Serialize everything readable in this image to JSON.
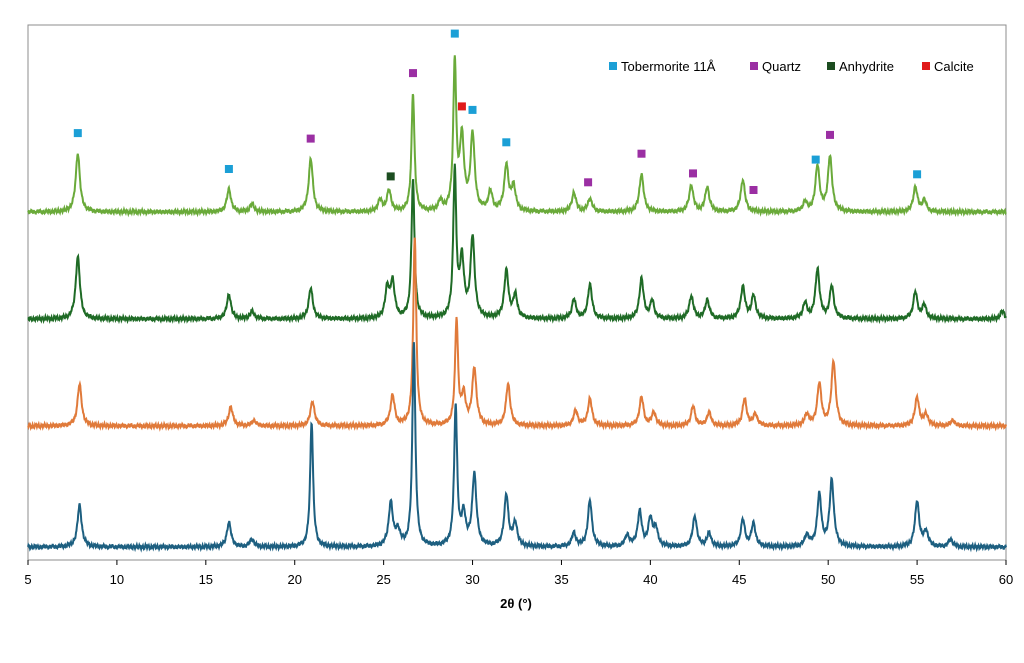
{
  "chart_data": {
    "type": "line",
    "title": "",
    "xlabel": "2θ (°)",
    "ylabel": "",
    "xlim": [
      5,
      60
    ],
    "x_ticks": [
      "5",
      "10",
      "15",
      "20",
      "25",
      "30",
      "35",
      "40",
      "45",
      "50",
      "55",
      "60"
    ],
    "grid": false,
    "legend": {
      "position": "top-right",
      "entries": [
        {
          "label": "Tobermorite 11Å",
          "color": "#1b9fd6"
        },
        {
          "label": "Quartz",
          "color": "#9b2fa3"
        },
        {
          "label": "Anhydrite",
          "color": "#1c4d20"
        },
        {
          "label": "Calcite",
          "color": "#e01a1a"
        }
      ]
    },
    "series": [
      {
        "color": "#6aaa3a",
        "baseline": 0,
        "peaks": [
          [
            7.8,
            0.31
          ],
          [
            16.3,
            0.12
          ],
          [
            17.6,
            0.04
          ],
          [
            20.9,
            0.28
          ],
          [
            24.8,
            0.06
          ],
          [
            25.3,
            0.11
          ],
          [
            26.65,
            0.62
          ],
          [
            28.2,
            0.05
          ],
          [
            29.0,
            0.78
          ],
          [
            29.4,
            0.38
          ],
          [
            30.0,
            0.4
          ],
          [
            31.0,
            0.1
          ],
          [
            31.9,
            0.24
          ],
          [
            32.3,
            0.13
          ],
          [
            35.7,
            0.1
          ],
          [
            36.6,
            0.07
          ],
          [
            39.5,
            0.2
          ],
          [
            42.3,
            0.14
          ],
          [
            43.2,
            0.13
          ],
          [
            45.2,
            0.17
          ],
          [
            48.7,
            0.05
          ],
          [
            49.4,
            0.24
          ],
          [
            50.1,
            0.29
          ],
          [
            54.9,
            0.13
          ],
          [
            55.4,
            0.06
          ]
        ]
      },
      {
        "color": "#1f6b26",
        "baseline": 0,
        "peaks": [
          [
            7.8,
            0.33
          ],
          [
            16.3,
            0.13
          ],
          [
            17.6,
            0.04
          ],
          [
            20.9,
            0.16
          ],
          [
            25.2,
            0.15
          ],
          [
            25.5,
            0.19
          ],
          [
            26.65,
            0.73
          ],
          [
            29.0,
            0.77
          ],
          [
            29.4,
            0.3
          ],
          [
            30.0,
            0.42
          ],
          [
            31.9,
            0.25
          ],
          [
            32.4,
            0.12
          ],
          [
            35.7,
            0.1
          ],
          [
            36.6,
            0.18
          ],
          [
            39.5,
            0.21
          ],
          [
            40.1,
            0.09
          ],
          [
            42.3,
            0.12
          ],
          [
            43.2,
            0.1
          ],
          [
            45.2,
            0.17
          ],
          [
            45.8,
            0.12
          ],
          [
            48.7,
            0.08
          ],
          [
            49.4,
            0.26
          ],
          [
            50.2,
            0.17
          ],
          [
            54.9,
            0.14
          ],
          [
            55.4,
            0.07
          ],
          [
            59.8,
            0.04
          ]
        ]
      },
      {
        "color": "#e07a3a",
        "baseline": 0,
        "peaks": [
          [
            7.9,
            0.22
          ],
          [
            16.4,
            0.1
          ],
          [
            17.7,
            0.03
          ],
          [
            21.0,
            0.13
          ],
          [
            25.5,
            0.16
          ],
          [
            26.75,
            1.0
          ],
          [
            29.1,
            0.55
          ],
          [
            29.5,
            0.15
          ],
          [
            30.1,
            0.3
          ],
          [
            32.0,
            0.22
          ],
          [
            35.8,
            0.08
          ],
          [
            36.6,
            0.14
          ],
          [
            39.5,
            0.15
          ],
          [
            40.2,
            0.07
          ],
          [
            42.4,
            0.1
          ],
          [
            43.3,
            0.07
          ],
          [
            45.3,
            0.14
          ],
          [
            45.9,
            0.06
          ],
          [
            48.8,
            0.06
          ],
          [
            49.5,
            0.22
          ],
          [
            50.3,
            0.34
          ],
          [
            55.0,
            0.15
          ],
          [
            55.5,
            0.06
          ],
          [
            57.0,
            0.03
          ]
        ]
      },
      {
        "color": "#1d5f80",
        "baseline": 0,
        "peaks": [
          [
            7.9,
            0.22
          ],
          [
            16.3,
            0.13
          ],
          [
            17.6,
            0.04
          ],
          [
            20.95,
            0.66
          ],
          [
            25.4,
            0.23
          ],
          [
            25.8,
            0.08
          ],
          [
            26.7,
            1.08
          ],
          [
            29.05,
            0.74
          ],
          [
            29.5,
            0.16
          ],
          [
            30.1,
            0.38
          ],
          [
            31.9,
            0.27
          ],
          [
            32.4,
            0.12
          ],
          [
            35.7,
            0.07
          ],
          [
            36.6,
            0.24
          ],
          [
            38.7,
            0.06
          ],
          [
            39.4,
            0.18
          ],
          [
            40.0,
            0.14
          ],
          [
            40.3,
            0.09
          ],
          [
            42.5,
            0.16
          ],
          [
            43.3,
            0.07
          ],
          [
            45.2,
            0.14
          ],
          [
            45.8,
            0.12
          ],
          [
            48.8,
            0.06
          ],
          [
            49.5,
            0.27
          ],
          [
            50.2,
            0.35
          ],
          [
            55.0,
            0.24
          ],
          [
            55.5,
            0.08
          ],
          [
            56.9,
            0.04
          ]
        ]
      }
    ],
    "annotations": [
      {
        "x": 7.8,
        "phase": "Tobermorite 11Å"
      },
      {
        "x": 16.3,
        "phase": "Tobermorite 11Å"
      },
      {
        "x": 20.9,
        "phase": "Quartz"
      },
      {
        "x": 25.4,
        "phase": "Anhydrite"
      },
      {
        "x": 26.65,
        "phase": "Quartz"
      },
      {
        "x": 29.0,
        "phase": "Tobermorite 11Å"
      },
      {
        "x": 29.4,
        "phase": "Calcite"
      },
      {
        "x": 30.0,
        "phase": "Tobermorite 11Å"
      },
      {
        "x": 31.9,
        "phase": "Tobermorite 11Å"
      },
      {
        "x": 36.5,
        "phase": "Quartz"
      },
      {
        "x": 39.5,
        "phase": "Quartz"
      },
      {
        "x": 42.4,
        "phase": "Quartz"
      },
      {
        "x": 45.8,
        "phase": "Quartz"
      },
      {
        "x": 49.3,
        "phase": "Tobermorite 11Å"
      },
      {
        "x": 50.1,
        "phase": "Quartz"
      },
      {
        "x": 55.0,
        "phase": "Tobermorite 11Å"
      }
    ]
  }
}
